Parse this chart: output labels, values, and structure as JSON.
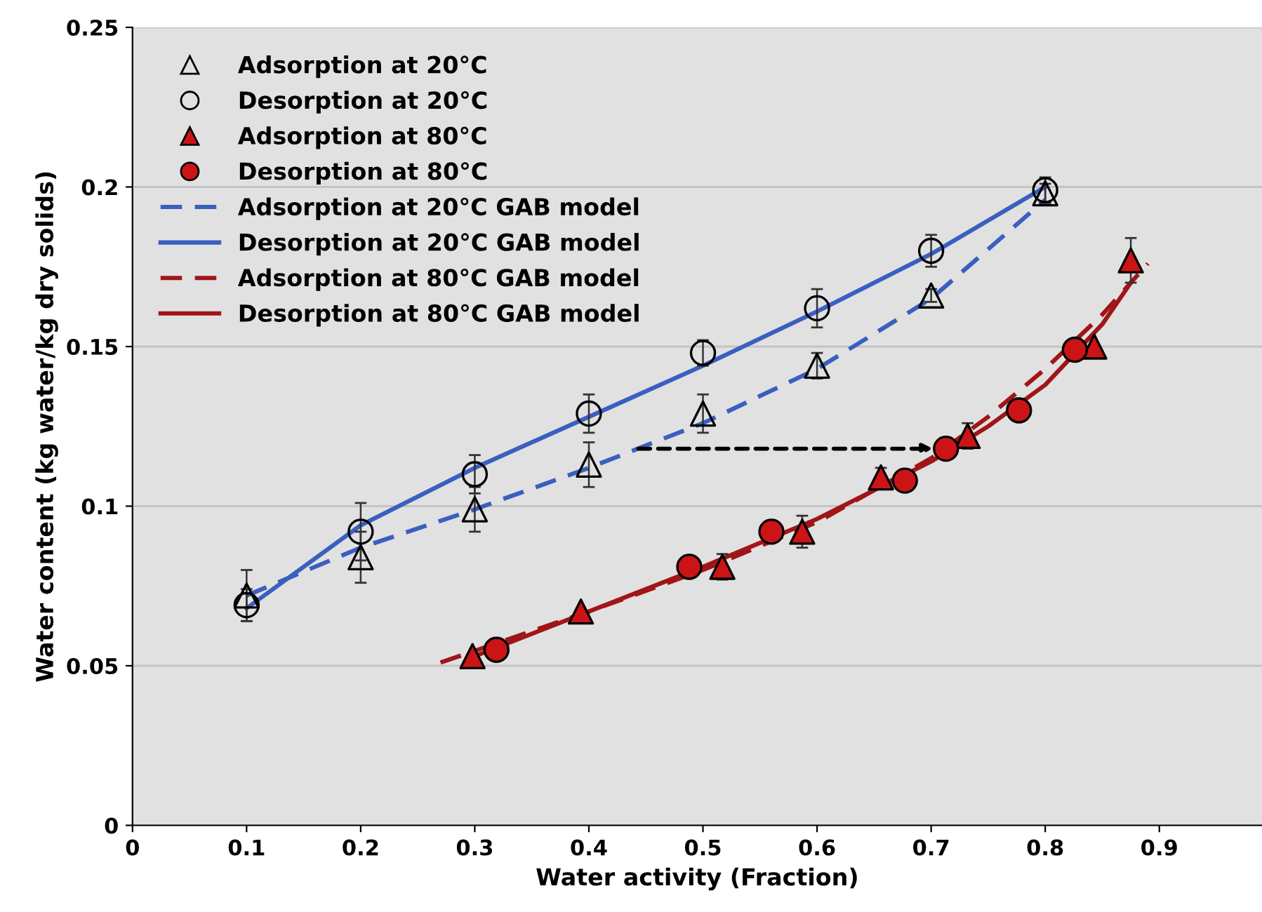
{
  "chart_data": {
    "type": "scatter",
    "xlabel": "Water activity (Fraction)",
    "ylabel": "Water content (kg water/kg dry solids)",
    "xlim": [
      0,
      0.99
    ],
    "xticks": [
      0,
      0.1,
      0.2,
      0.3,
      0.4,
      0.5,
      0.6,
      0.7,
      0.8,
      0.9
    ],
    "ylim": [
      0,
      0.25
    ],
    "yticks": [
      0,
      0.05,
      0.1,
      0.15,
      0.2,
      0.25
    ],
    "grid": "y",
    "legend": "top left",
    "series": [
      {
        "name": "Adsorption at 20°C",
        "marker": "triangle",
        "color": "#000000",
        "x": [
          0.1,
          0.2,
          0.3,
          0.4,
          0.5,
          0.6,
          0.7,
          0.8
        ],
        "values": [
          0.072,
          0.084,
          0.099,
          0.113,
          0.129,
          0.144,
          0.166,
          0.198
        ],
        "errors": [
          0.008,
          0.008,
          0.007,
          0.007,
          0.006,
          0.004,
          0.002,
          0.003
        ]
      },
      {
        "name": "Desorption at 20°C",
        "marker": "circle",
        "color": "#000000",
        "x": [
          0.1,
          0.2,
          0.3,
          0.4,
          0.5,
          0.6,
          0.7,
          0.8
        ],
        "values": [
          0.069,
          0.092,
          0.11,
          0.129,
          0.148,
          0.162,
          0.18,
          0.199
        ],
        "errors": [
          0.005,
          0.009,
          0.006,
          0.006,
          0.004,
          0.006,
          0.005,
          0.004
        ]
      },
      {
        "name": "Adsorption at 80°C",
        "marker": "triangle",
        "color": "#cc1417",
        "x": [
          0.298,
          0.393,
          0.517,
          0.587,
          0.656,
          0.732,
          0.843,
          0.875
        ],
        "values": [
          0.053,
          0.067,
          0.081,
          0.092,
          0.109,
          0.122,
          0.15,
          0.177
        ],
        "errors": [
          null,
          null,
          0.004,
          0.005,
          0.003,
          0.004,
          null,
          0.007
        ]
      },
      {
        "name": "Desorption at 80°C",
        "marker": "circle",
        "color": "#cc1417",
        "x": [
          0.319,
          0.488,
          0.56,
          0.677,
          0.713,
          0.777,
          0.826
        ],
        "values": [
          0.055,
          0.081,
          0.092,
          0.108,
          0.118,
          0.13,
          0.149
        ]
      },
      {
        "name": "Adsorption at 20°C GAB model",
        "type": "line",
        "line_style": "dashed",
        "color": "#3a5fc0",
        "x": [
          0.1,
          0.2,
          0.3,
          0.4,
          0.5,
          0.6,
          0.7,
          0.8
        ],
        "values": [
          0.072,
          0.087,
          0.099,
          0.112,
          0.126,
          0.143,
          0.165,
          0.196
        ]
      },
      {
        "name": "Desorption at 20°C GAB model",
        "type": "line",
        "line_style": "solid",
        "color": "#3a5fc0",
        "x": [
          0.1,
          0.2,
          0.3,
          0.4,
          0.5,
          0.6,
          0.7,
          0.8
        ],
        "values": [
          0.068,
          0.094,
          0.112,
          0.128,
          0.144,
          0.161,
          0.179,
          0.2
        ]
      },
      {
        "name": "Adsorption at 80°C GAB model",
        "type": "line",
        "line_style": "dashed",
        "color": "#a01518",
        "x": [
          0.27,
          0.4,
          0.5,
          0.6,
          0.7,
          0.75,
          0.8,
          0.85,
          0.89
        ],
        "values": [
          0.051,
          0.067,
          0.08,
          0.095,
          0.115,
          0.128,
          0.143,
          0.16,
          0.176
        ]
      },
      {
        "name": "Desorption at 80°C GAB model",
        "type": "line",
        "line_style": "solid",
        "color": "#a01518",
        "x": [
          0.3,
          0.4,
          0.5,
          0.6,
          0.7,
          0.75,
          0.8,
          0.85,
          0.875
        ],
        "values": [
          0.053,
          0.067,
          0.081,
          0.096,
          0.114,
          0.125,
          0.138,
          0.157,
          0.17
        ]
      }
    ]
  }
}
